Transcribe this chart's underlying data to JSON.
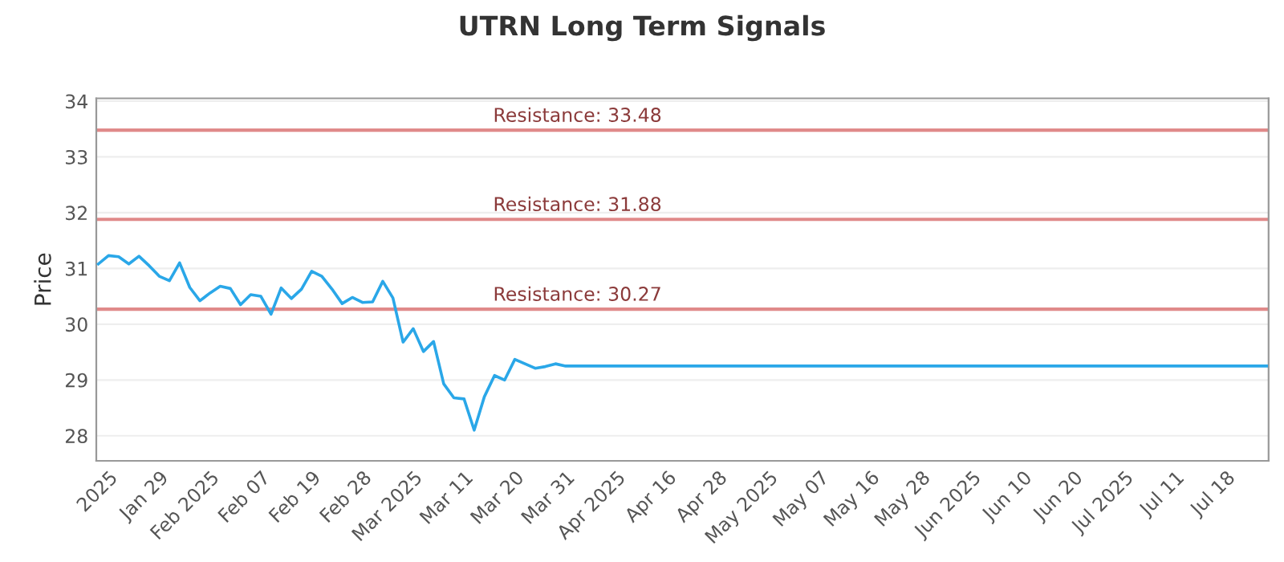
{
  "chart_data": {
    "type": "line",
    "title": "UTRN Long Term Signals",
    "ylabel": "Price",
    "categories": [
      null,
      "2025",
      null,
      null,
      null,
      null,
      "Jan 29",
      null,
      null,
      null,
      null,
      "Feb 2025",
      null,
      null,
      null,
      null,
      "Feb 07",
      null,
      null,
      null,
      null,
      "Feb 19",
      null,
      null,
      null,
      null,
      "Feb 28",
      null,
      null,
      null,
      null,
      "Mar 2025",
      null,
      null,
      null,
      null,
      "Mar 11",
      null,
      null,
      null,
      null,
      "Mar 20",
      null,
      null,
      null,
      null,
      "Mar 31",
      null,
      null,
      null,
      null,
      "Apr 2025",
      null,
      null,
      null,
      null,
      "Apr 16",
      null,
      null,
      null,
      null,
      "Apr 28",
      null,
      null,
      null,
      null,
      "May 2025",
      null,
      null,
      null,
      null,
      "May 07",
      null,
      null,
      null,
      null,
      "May 16",
      null,
      null,
      null,
      null,
      "May 28",
      null,
      null,
      null,
      null,
      "Jun 2025",
      null,
      null,
      null,
      null,
      "Jun 10",
      null,
      null,
      null,
      null,
      "Jun 20",
      null,
      null,
      null,
      null,
      "Jul 2025",
      null,
      null,
      null,
      null,
      "Jul 11",
      null,
      null,
      null,
      null,
      "Jul 18",
      null,
      null,
      null,
      null
    ],
    "series": [
      {
        "color": "#2aa7e8",
        "values": [
          31.08,
          31.23,
          31.21,
          31.08,
          31.22,
          31.05,
          30.86,
          30.78,
          31.1,
          30.66,
          30.42,
          30.56,
          30.68,
          30.64,
          30.35,
          30.53,
          30.5,
          30.18,
          30.65,
          30.46,
          30.63,
          30.95,
          30.86,
          30.63,
          30.37,
          30.48,
          30.39,
          30.4,
          30.77,
          30.47,
          29.68,
          29.92,
          29.51,
          29.69,
          28.93,
          28.68,
          28.66,
          28.1,
          28.7,
          29.08,
          29.0,
          29.37,
          29.29,
          29.21,
          29.24,
          29.29,
          29.25,
          29.25,
          29.25,
          29.25,
          29.25,
          29.25,
          29.25,
          29.25,
          29.25,
          29.25,
          29.25,
          29.25,
          29.25,
          29.25,
          29.25,
          29.25,
          29.25,
          29.25,
          29.25,
          29.25,
          29.25,
          29.25,
          29.25,
          29.25,
          29.25,
          29.25,
          29.25,
          29.25,
          29.25,
          29.25,
          29.25,
          29.25,
          29.25,
          29.25,
          29.25,
          29.25,
          29.25,
          29.25,
          29.25,
          29.25,
          29.25,
          29.25,
          29.25,
          29.25,
          29.25,
          29.25,
          29.25,
          29.25,
          29.25,
          29.25,
          29.25,
          29.25,
          29.25,
          29.25,
          29.25,
          29.25,
          29.25,
          29.25,
          29.25,
          29.25,
          29.25,
          29.25,
          29.25,
          29.25,
          29.25,
          29.25,
          29.25,
          29.25,
          29.25,
          29.25
        ]
      }
    ],
    "ylim": [
      27.55,
      34.05
    ],
    "yticks": [
      28,
      29,
      30,
      31,
      32,
      33,
      34
    ],
    "grid": "y",
    "marker": "none",
    "line_style": "solid",
    "ref_lines": [
      {
        "axis": "y",
        "value": 33.48,
        "label": "Resistance: 33.48",
        "color": "#e08a8a"
      },
      {
        "axis": "y",
        "value": 31.88,
        "label": "Resistance: 31.88",
        "color": "#e08a8a"
      },
      {
        "axis": "y",
        "value": 30.27,
        "label": "Resistance: 30.27",
        "color": "#e08a8a"
      }
    ]
  }
}
